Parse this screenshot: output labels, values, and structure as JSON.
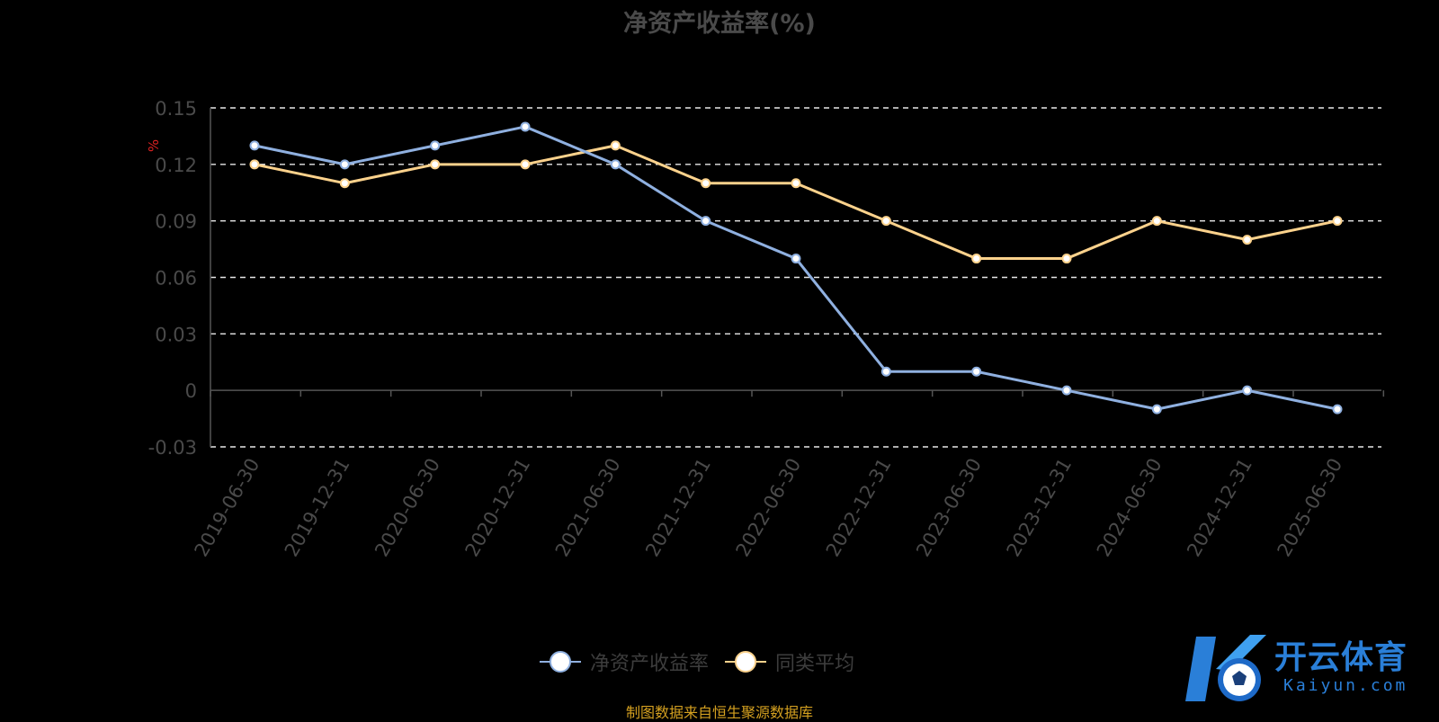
{
  "chart_data": {
    "type": "line",
    "title": "净资产收益率(%)",
    "ylabel": "%",
    "xlabel": "",
    "categories": [
      "2019-06-30",
      "2019-12-31",
      "2020-06-30",
      "2020-12-31",
      "2021-06-30",
      "2021-12-31",
      "2022-06-30",
      "2022-12-31",
      "2023-06-30",
      "2023-12-31",
      "2024-06-30",
      "2024-12-31",
      "2025-06-30"
    ],
    "y_ticks": [
      "0.15",
      "0.12",
      "0.09",
      "0.06",
      "0.03",
      "0",
      "-0.03"
    ],
    "ylim": [
      -0.03,
      0.15
    ],
    "grid": true,
    "legend_position": "bottom",
    "series": [
      {
        "name": "净资产收益率",
        "color": "#8fb0e0",
        "values": [
          0.13,
          0.12,
          0.13,
          0.14,
          0.12,
          0.09,
          0.07,
          0.01,
          0.01,
          0.0,
          -0.01,
          0.0,
          -0.01
        ]
      },
      {
        "name": "同类平均",
        "color": "#fcd28c",
        "values": [
          0.12,
          0.11,
          0.12,
          0.12,
          0.13,
          0.11,
          0.11,
          0.09,
          0.07,
          0.07,
          0.09,
          0.08,
          0.09
        ]
      }
    ]
  },
  "source_text": "制图数据来自恒生聚源数据库",
  "watermark": {
    "title": "开云体育",
    "subtitle": "Kaiyun.com"
  }
}
